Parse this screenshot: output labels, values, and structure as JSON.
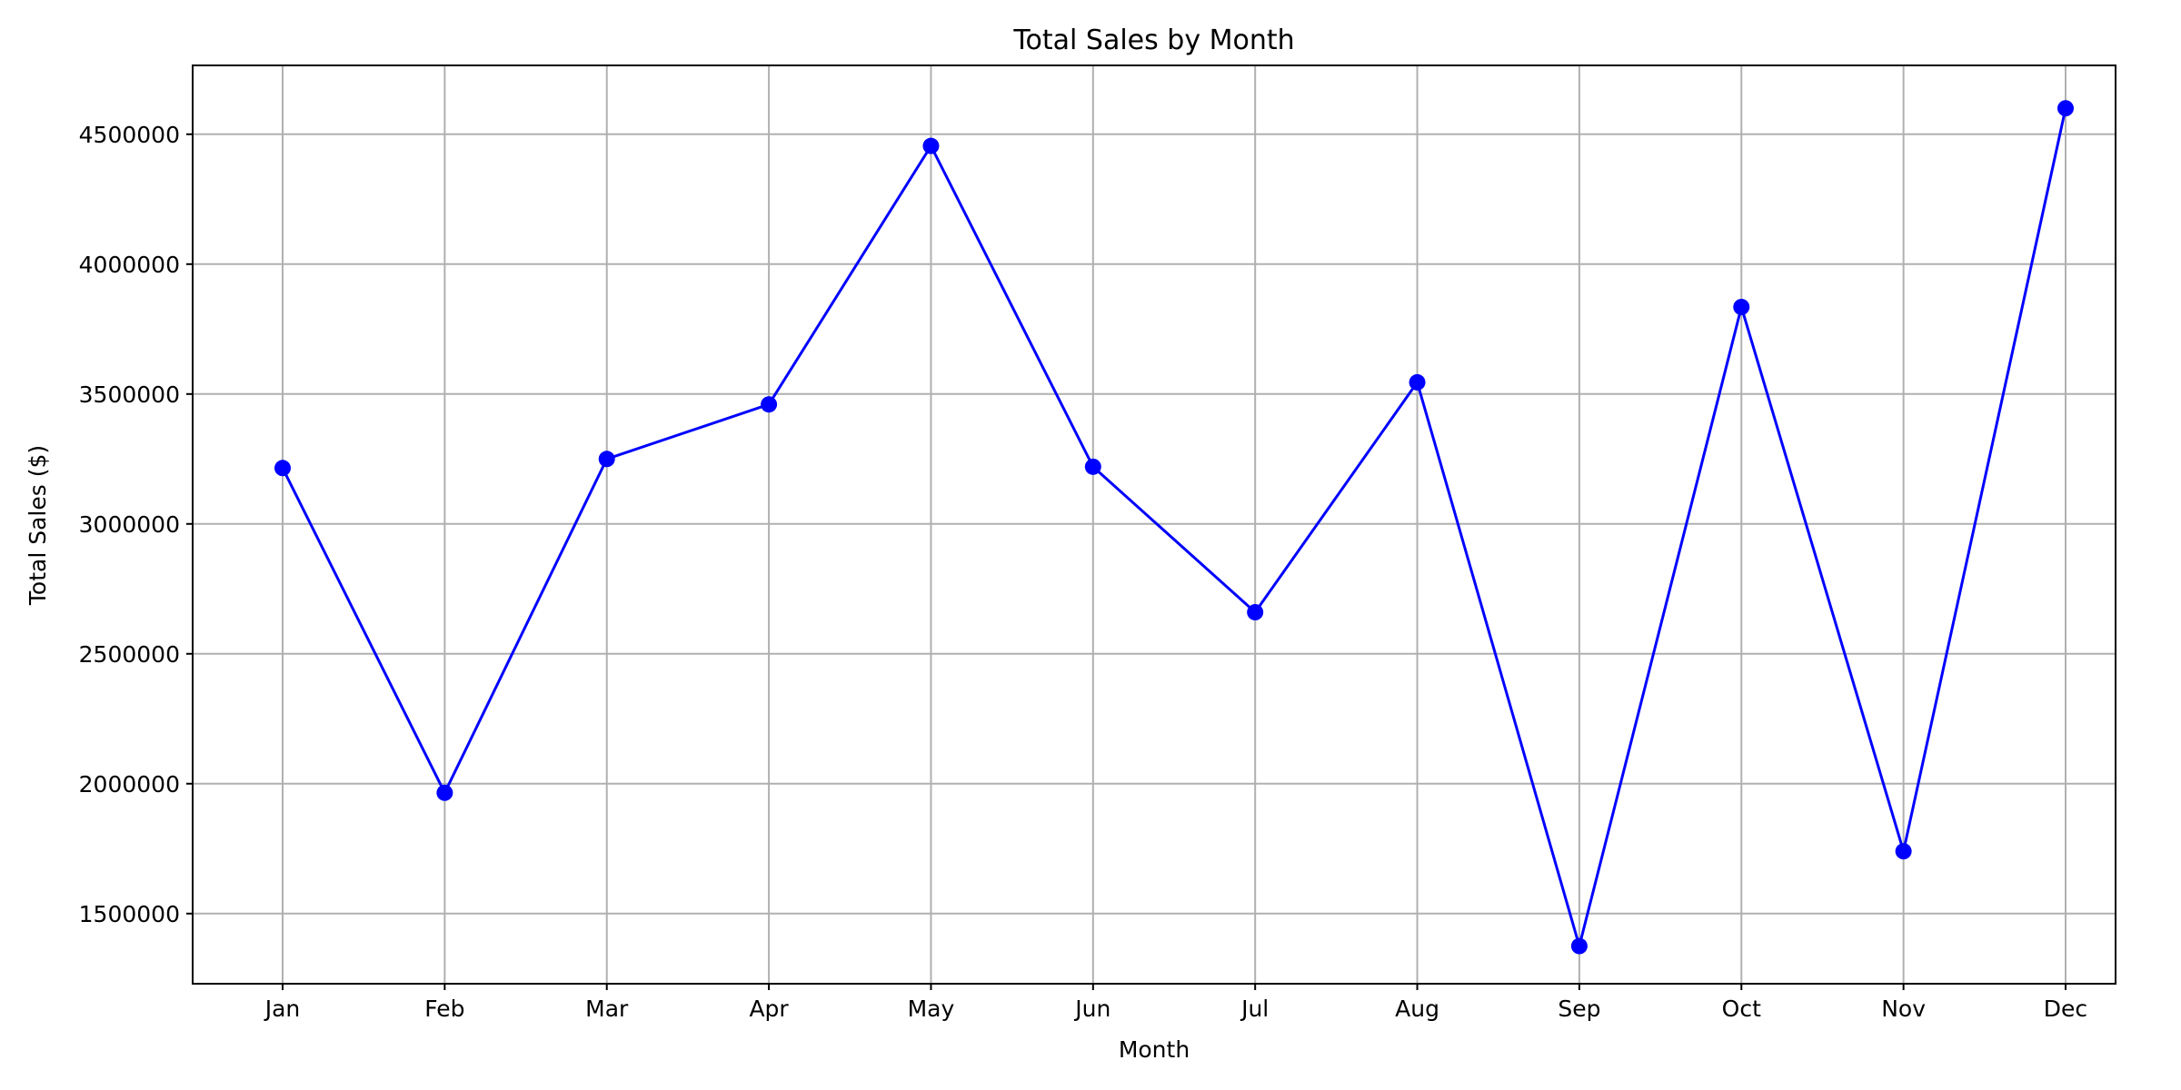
{
  "chart_data": {
    "type": "line",
    "title": "Total Sales by Month",
    "xlabel": "Month",
    "ylabel": "Total Sales ($)",
    "categories": [
      "Jan",
      "Feb",
      "Mar",
      "Apr",
      "May",
      "Jun",
      "Jul",
      "Aug",
      "Sep",
      "Oct",
      "Nov",
      "Dec"
    ],
    "series": [
      {
        "values": [
          3215000,
          1965000,
          3250000,
          3460000,
          4455000,
          3220000,
          2660000,
          3545000,
          1375000,
          3835000,
          1740000,
          4600000
        ],
        "color": "#0000ff",
        "marker": "circle"
      }
    ],
    "yticks": [
      "1500000",
      "2000000",
      "2500000",
      "3000000",
      "3500000",
      "4000000",
      "4500000"
    ],
    "ylim": [
      1230000,
      4765000
    ],
    "grid": true,
    "colors": {
      "line": "#0000ff",
      "grid": "#b0b0b0",
      "axes": "#000000"
    }
  }
}
